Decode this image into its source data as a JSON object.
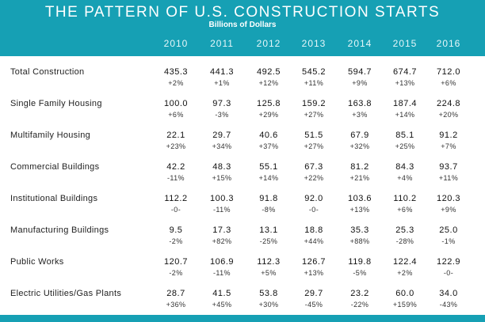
{
  "title": "THE PATTERN OF U.S. CONSTRUCTION STARTS",
  "subtitle": "Billions of Dollars",
  "years": [
    "2010",
    "2011",
    "2012",
    "2013",
    "2014",
    "2015",
    "2016"
  ],
  "rows": [
    {
      "label": "Total Construction",
      "values": [
        "435.3",
        "441.3",
        "492.5",
        "545.2",
        "594.7",
        "674.7",
        "712.0"
      ],
      "changes": [
        "+2%",
        "+1%",
        "+12%",
        "+11%",
        "+9%",
        "+13%",
        "+6%"
      ]
    },
    {
      "label": "Single Family Housing",
      "values": [
        "100.0",
        "97.3",
        "125.8",
        "159.2",
        "163.8",
        "187.4",
        "224.8"
      ],
      "changes": [
        "+6%",
        "-3%",
        "+29%",
        "+27%",
        "+3%",
        "+14%",
        "+20%"
      ]
    },
    {
      "label": "Multifamily Housing",
      "values": [
        "22.1",
        "29.7",
        "40.6",
        "51.5",
        "67.9",
        "85.1",
        "91.2"
      ],
      "changes": [
        "+23%",
        "+34%",
        "+37%",
        "+27%",
        "+32%",
        "+25%",
        "+7%"
      ]
    },
    {
      "label": "Commercial Buildings",
      "values": [
        "42.2",
        "48.3",
        "55.1",
        "67.3",
        "81.2",
        "84.3",
        "93.7"
      ],
      "changes": [
        "-11%",
        "+15%",
        "+14%",
        "+22%",
        "+21%",
        "+4%",
        "+11%"
      ]
    },
    {
      "label": "Institutional Buildings",
      "values": [
        "112.2",
        "100.3",
        "91.8",
        "92.0",
        "103.6",
        "110.2",
        "120.3"
      ],
      "changes": [
        "-0-",
        "-11%",
        "-8%",
        "-0-",
        "+13%",
        "+6%",
        "+9%"
      ]
    },
    {
      "label": "Manufacturing Buildings",
      "values": [
        "9.5",
        "17.3",
        "13.1",
        "18.8",
        "35.3",
        "25.3",
        "25.0"
      ],
      "changes": [
        "-2%",
        "+82%",
        "-25%",
        "+44%",
        "+88%",
        "-28%",
        "-1%"
      ]
    },
    {
      "label": "Public Works",
      "values": [
        "120.7",
        "106.9",
        "112.3",
        "126.7",
        "119.8",
        "122.4",
        "122.9"
      ],
      "changes": [
        "-2%",
        "-11%",
        "+5%",
        "+13%",
        "-5%",
        "+2%",
        "-0-"
      ]
    },
    {
      "label": "Electric Utilities/Gas Plants",
      "values": [
        "28.7",
        "41.5",
        "53.8",
        "29.7",
        "23.2",
        "60.0",
        "34.0"
      ],
      "changes": [
        "+36%",
        "+45%",
        "+30%",
        "-45%",
        "-22%",
        "+159%",
        "-43%"
      ]
    }
  ],
  "colors": {
    "header": "#16a0b4",
    "header_text": "#ffffff"
  }
}
